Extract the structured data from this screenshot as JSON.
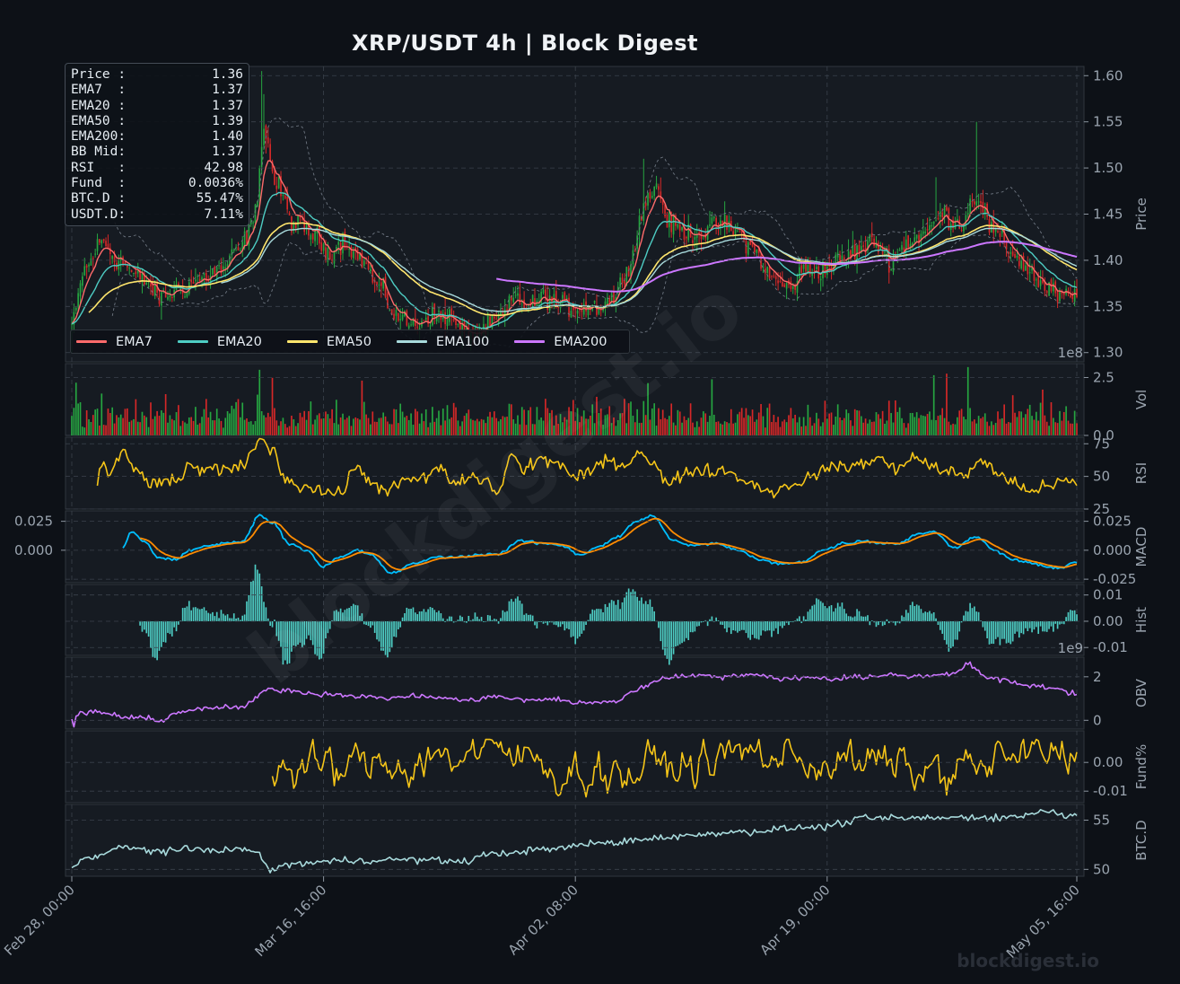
{
  "title": "XRP/USDT  4h  |  Block Digest",
  "watermark_corner": "blockdigest.io",
  "watermark_diagonal": "blockdigest.io",
  "info_box": [
    {
      "label": "Price :",
      "value": "1.36"
    },
    {
      "label": "EMA7  :",
      "value": "1.37"
    },
    {
      "label": "EMA20 :",
      "value": "1.37"
    },
    {
      "label": "EMA50 :",
      "value": "1.39"
    },
    {
      "label": "EMA200:",
      "value": "1.40"
    },
    {
      "label": "BB Mid:",
      "value": "1.37"
    },
    {
      "label": "RSI   :",
      "value": "42.98"
    },
    {
      "label": "Fund  :",
      "value": "0.0036%"
    },
    {
      "label": "BTC.D :",
      "value": "55.47%"
    },
    {
      "label": "USDT.D:",
      "value": "7.11%"
    }
  ],
  "legend": [
    {
      "name": "EMA7",
      "color": "#ff6b6b"
    },
    {
      "name": "EMA20",
      "color": "#4ecdc4"
    },
    {
      "name": "EMA50",
      "color": "#ffe66d"
    },
    {
      "name": "EMA100",
      "color": "#a8dadc"
    },
    {
      "name": "EMA200",
      "color": "#cc77ff"
    }
  ],
  "colors": {
    "background": "#0d1117",
    "panel": "#161b22",
    "up": "#26a641",
    "down": "#d62828",
    "rsi": "#f5c518",
    "macd": "#00bfff",
    "signal": "#ff8c00",
    "hist": "#4ecdc4",
    "obv": "#cc77ff",
    "funding": "#f5c518",
    "btcd": "#a8dadc",
    "bb": "#6e7681"
  },
  "chart_data": {
    "type": "line",
    "x_tick_labels": [
      "Feb 28, 00:00",
      "Mar 16, 16:00",
      "Apr 02, 08:00",
      "Apr 19, 00:00",
      "May 05, 16:00"
    ],
    "price": {
      "ylabel": "Price",
      "ylim": [
        1.29,
        1.61
      ],
      "yticks": [
        "1.30",
        "1.35",
        "1.40",
        "1.45",
        "1.50",
        "1.55",
        "1.60"
      ],
      "close_anchors": [
        [
          0,
          1.33
        ],
        [
          6,
          1.39
        ],
        [
          14,
          1.42
        ],
        [
          22,
          1.4
        ],
        [
          32,
          1.38
        ],
        [
          42,
          1.36
        ],
        [
          52,
          1.37
        ],
        [
          60,
          1.38
        ],
        [
          70,
          1.39
        ],
        [
          78,
          1.41
        ],
        [
          85,
          1.44
        ],
        [
          90,
          1.54
        ],
        [
          96,
          1.48
        ],
        [
          104,
          1.44
        ],
        [
          112,
          1.43
        ],
        [
          120,
          1.41
        ],
        [
          128,
          1.42
        ],
        [
          136,
          1.4
        ],
        [
          144,
          1.37
        ],
        [
          152,
          1.34
        ],
        [
          160,
          1.33
        ],
        [
          168,
          1.34
        ],
        [
          176,
          1.34
        ],
        [
          184,
          1.32
        ],
        [
          190,
          1.32
        ],
        [
          196,
          1.33
        ],
        [
          202,
          1.34
        ],
        [
          208,
          1.36
        ],
        [
          214,
          1.35
        ],
        [
          222,
          1.36
        ],
        [
          230,
          1.35
        ],
        [
          238,
          1.35
        ],
        [
          246,
          1.35
        ],
        [
          254,
          1.36
        ],
        [
          262,
          1.4
        ],
        [
          268,
          1.46
        ],
        [
          274,
          1.48
        ],
        [
          280,
          1.44
        ],
        [
          288,
          1.43
        ],
        [
          296,
          1.43
        ],
        [
          304,
          1.44
        ],
        [
          312,
          1.43
        ],
        [
          320,
          1.41
        ],
        [
          328,
          1.38
        ],
        [
          336,
          1.37
        ],
        [
          344,
          1.39
        ],
        [
          352,
          1.39
        ],
        [
          360,
          1.4
        ],
        [
          368,
          1.41
        ],
        [
          376,
          1.42
        ],
        [
          384,
          1.4
        ],
        [
          392,
          1.42
        ],
        [
          400,
          1.43
        ],
        [
          408,
          1.45
        ],
        [
          416,
          1.44
        ],
        [
          424,
          1.47
        ],
        [
          432,
          1.43
        ],
        [
          440,
          1.41
        ],
        [
          448,
          1.39
        ],
        [
          456,
          1.37
        ],
        [
          464,
          1.36
        ],
        [
          471,
          1.36
        ]
      ],
      "ema200_start_index": 199
    },
    "volume": {
      "ylabel": "Vol",
      "yticks": [
        "0.0",
        "2.5"
      ],
      "scale_label": "1e8",
      "ylim": [
        0,
        3.1
      ]
    },
    "rsi": {
      "ylabel": "RSI",
      "yticks": [
        "25",
        "50",
        "75"
      ],
      "ylim": [
        25,
        80
      ],
      "anchors": [
        [
          12,
          48
        ],
        [
          14,
          59
        ],
        [
          18,
          52
        ],
        [
          24,
          68
        ],
        [
          30,
          55
        ],
        [
          36,
          46
        ],
        [
          42,
          44
        ],
        [
          50,
          48
        ],
        [
          56,
          60
        ],
        [
          60,
          52
        ],
        [
          66,
          56
        ],
        [
          74,
          54
        ],
        [
          80,
          60
        ],
        [
          88,
          77
        ],
        [
          94,
          72
        ],
        [
          100,
          48
        ],
        [
          110,
          42
        ],
        [
          120,
          38
        ],
        [
          126,
          36
        ],
        [
          132,
          57
        ],
        [
          140,
          46
        ],
        [
          148,
          40
        ],
        [
          156,
          46
        ],
        [
          164,
          48
        ],
        [
          172,
          56
        ],
        [
          180,
          44
        ],
        [
          188,
          50
        ],
        [
          194,
          46
        ],
        [
          200,
          38
        ],
        [
          206,
          66
        ],
        [
          212,
          55
        ],
        [
          220,
          64
        ],
        [
          228,
          60
        ],
        [
          236,
          48
        ],
        [
          244,
          55
        ],
        [
          252,
          63
        ],
        [
          260,
          58
        ],
        [
          266,
          71
        ],
        [
          272,
          60
        ],
        [
          280,
          44
        ],
        [
          290,
          55
        ],
        [
          298,
          54
        ],
        [
          306,
          55
        ],
        [
          314,
          48
        ],
        [
          322,
          42
        ],
        [
          330,
          38
        ],
        [
          338,
          45
        ],
        [
          346,
          48
        ],
        [
          354,
          58
        ],
        [
          362,
          56
        ],
        [
          370,
          60
        ],
        [
          378,
          64
        ],
        [
          386,
          55
        ],
        [
          394,
          66
        ],
        [
          402,
          58
        ],
        [
          410,
          54
        ],
        [
          418,
          50
        ],
        [
          426,
          63
        ],
        [
          434,
          52
        ],
        [
          442,
          44
        ],
        [
          450,
          40
        ],
        [
          458,
          42
        ],
        [
          466,
          47
        ],
        [
          471,
          44
        ]
      ]
    },
    "macd": {
      "ylabel": "MACD",
      "yticks": [
        "-0.025",
        "0.000",
        "0.025"
      ],
      "left_yticks": [
        "0.000",
        "0.025"
      ],
      "ylim": [
        -0.028,
        0.034
      ],
      "anchors": [
        [
          24,
          0.002
        ],
        [
          28,
          0.016
        ],
        [
          34,
          0.008
        ],
        [
          40,
          -0.006
        ],
        [
          48,
          -0.008
        ],
        [
          56,
          0
        ],
        [
          64,
          0.004
        ],
        [
          72,
          0.006
        ],
        [
          80,
          0.008
        ],
        [
          88,
          0.03
        ],
        [
          94,
          0.024
        ],
        [
          102,
          0.006
        ],
        [
          110,
          0
        ],
        [
          118,
          -0.014
        ],
        [
          126,
          -0.006
        ],
        [
          134,
          0
        ],
        [
          140,
          -0.004
        ],
        [
          150,
          -0.02
        ],
        [
          160,
          -0.012
        ],
        [
          170,
          -0.006
        ],
        [
          180,
          -0.006
        ],
        [
          190,
          -0.004
        ],
        [
          200,
          -0.003
        ],
        [
          210,
          0.008
        ],
        [
          220,
          0.006
        ],
        [
          230,
          0.004
        ],
        [
          238,
          -0.004
        ],
        [
          248,
          0.004
        ],
        [
          256,
          0.012
        ],
        [
          264,
          0.024
        ],
        [
          272,
          0.03
        ],
        [
          282,
          0.008
        ],
        [
          292,
          0.004
        ],
        [
          302,
          0.006
        ],
        [
          312,
          0
        ],
        [
          322,
          -0.008
        ],
        [
          332,
          -0.012
        ],
        [
          342,
          -0.01
        ],
        [
          352,
          0
        ],
        [
          362,
          0.006
        ],
        [
          372,
          0.008
        ],
        [
          380,
          0.006
        ],
        [
          388,
          0.006
        ],
        [
          396,
          0.014
        ],
        [
          404,
          0.016
        ],
        [
          414,
          0.002
        ],
        [
          424,
          0.012
        ],
        [
          432,
          0
        ],
        [
          442,
          -0.008
        ],
        [
          452,
          -0.012
        ],
        [
          462,
          -0.016
        ],
        [
          471,
          -0.01
        ]
      ]
    },
    "hist": {
      "ylabel": "Hist",
      "yticks": [
        "-0.01",
        "0.00",
        "0.01"
      ],
      "scale_label": "1e9",
      "ylim": [
        -0.013,
        0.014
      ]
    },
    "obv": {
      "ylabel": "OBV",
      "yticks": [
        "0",
        "2"
      ],
      "ylim": [
        -0.4,
        2.9
      ],
      "anchors": [
        [
          0,
          0
        ],
        [
          4,
          0.3
        ],
        [
          10,
          0.4
        ],
        [
          18,
          0.3
        ],
        [
          26,
          0.1
        ],
        [
          34,
          0.1
        ],
        [
          42,
          0
        ],
        [
          48,
          0.3
        ],
        [
          56,
          0.5
        ],
        [
          62,
          0.5
        ],
        [
          70,
          0.6
        ],
        [
          80,
          0.6
        ],
        [
          92,
          1.4
        ],
        [
          100,
          1.4
        ],
        [
          108,
          1.3
        ],
        [
          116,
          1.2
        ],
        [
          126,
          1.2
        ],
        [
          136,
          1.1
        ],
        [
          146,
          1.0
        ],
        [
          156,
          1.1
        ],
        [
          166,
          1.1
        ],
        [
          176,
          1.0
        ],
        [
          186,
          0.9
        ],
        [
          196,
          1.1
        ],
        [
          206,
          1.0
        ],
        [
          216,
          0.9
        ],
        [
          226,
          1.0
        ],
        [
          236,
          0.8
        ],
        [
          246,
          0.8
        ],
        [
          256,
          0.9
        ],
        [
          262,
          1.3
        ],
        [
          270,
          1.6
        ],
        [
          278,
          2.0
        ],
        [
          286,
          2.0
        ],
        [
          296,
          2.1
        ],
        [
          306,
          2.0
        ],
        [
          316,
          2.1
        ],
        [
          326,
          2.0
        ],
        [
          336,
          1.9
        ],
        [
          346,
          2.0
        ],
        [
          356,
          1.9
        ],
        [
          366,
          2.0
        ],
        [
          376,
          2.0
        ],
        [
          386,
          2.1
        ],
        [
          396,
          2.0
        ],
        [
          406,
          2.1
        ],
        [
          414,
          2.2
        ],
        [
          420,
          2.6
        ],
        [
          428,
          2.0
        ],
        [
          438,
          1.8
        ],
        [
          448,
          1.6
        ],
        [
          460,
          1.5
        ],
        [
          471,
          1.2
        ]
      ]
    },
    "funding": {
      "ylabel": "Fund%",
      "yticks": [
        "-0.01",
        "0.00"
      ],
      "start_index": 94,
      "ylim": [
        -0.014,
        0.011
      ]
    },
    "btcd": {
      "ylabel": "BTC.D",
      "yticks": [
        "50",
        "55"
      ],
      "ylim": [
        49.3,
        56.6
      ],
      "anchors": [
        [
          0,
          50.5
        ],
        [
          10,
          51.3
        ],
        [
          24,
          52.2
        ],
        [
          40,
          51.9
        ],
        [
          60,
          52.0
        ],
        [
          84,
          52.0
        ],
        [
          94,
          50.0
        ],
        [
          104,
          50.6
        ],
        [
          130,
          50.9
        ],
        [
          160,
          51.0
        ],
        [
          184,
          50.8
        ],
        [
          194,
          51.5
        ],
        [
          220,
          52.0
        ],
        [
          250,
          52.7
        ],
        [
          280,
          53.3
        ],
        [
          310,
          53.8
        ],
        [
          350,
          54.3
        ],
        [
          374,
          55.2
        ],
        [
          400,
          55.2
        ],
        [
          420,
          55.3
        ],
        [
          440,
          55.3
        ],
        [
          456,
          55.9
        ],
        [
          471,
          55.4
        ]
      ]
    }
  }
}
